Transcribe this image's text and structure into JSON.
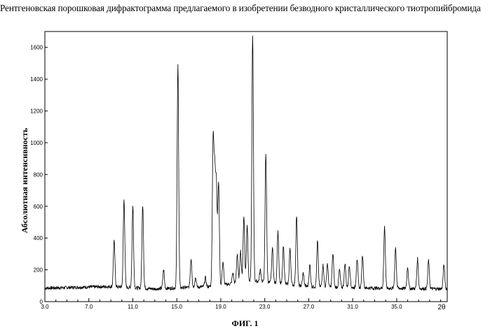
{
  "figure": {
    "title": "Рентгеновская порошковая дифрактограмма предлагаемого в изобретении безводного кристаллического тиотропийбромида",
    "caption": "ФИГ. 1"
  },
  "chart_data": {
    "type": "line",
    "ylabel": "Абсолютная интенсивность",
    "xlabel": "2θ",
    "xlim": [
      3.0,
      39.6
    ],
    "ylim": [
      0,
      1700
    ],
    "x_ticks": [
      "3.0",
      "7.0",
      "11.0",
      "15.0",
      "19.0",
      "23.0",
      "27.0",
      "31.0",
      "35.0"
    ],
    "y_ticks": [
      "0",
      "200",
      "400",
      "600",
      "800",
      "1000",
      "1200",
      "1400",
      "1600"
    ],
    "x_tick_values": [
      3,
      7,
      11,
      15,
      19,
      23,
      27,
      31,
      35
    ],
    "y_tick_values": [
      0,
      200,
      400,
      600,
      800,
      1000,
      1200,
      1400,
      1600
    ],
    "series": [
      {
        "line_color": "#000000",
        "baseline": [
          [
            3.0,
            85
          ],
          [
            9.0,
            95
          ],
          [
            13.0,
            80
          ],
          [
            18.0,
            95
          ],
          [
            22.0,
            130
          ],
          [
            27.0,
            95
          ],
          [
            33.0,
            85
          ],
          [
            39.6,
            80
          ]
        ],
        "peaks": [
          [
            9.3,
            380
          ],
          [
            10.2,
            640
          ],
          [
            11.0,
            600
          ],
          [
            11.9,
            610
          ],
          [
            13.8,
            200
          ],
          [
            15.1,
            1490
          ],
          [
            16.3,
            270
          ],
          [
            16.7,
            150
          ],
          [
            17.6,
            150
          ],
          [
            18.3,
            1000
          ],
          [
            18.45,
            760
          ],
          [
            18.6,
            720
          ],
          [
            18.8,
            740
          ],
          [
            19.2,
            250
          ],
          [
            20.1,
            180
          ],
          [
            20.5,
            300
          ],
          [
            20.8,
            320
          ],
          [
            21.1,
            540
          ],
          [
            21.4,
            480
          ],
          [
            21.9,
            1670
          ],
          [
            22.6,
            200
          ],
          [
            23.1,
            930
          ],
          [
            23.7,
            340
          ],
          [
            24.2,
            440
          ],
          [
            24.7,
            350
          ],
          [
            25.3,
            330
          ],
          [
            25.9,
            540
          ],
          [
            26.5,
            180
          ],
          [
            27.1,
            230
          ],
          [
            27.8,
            380
          ],
          [
            28.3,
            230
          ],
          [
            28.7,
            240
          ],
          [
            29.2,
            300
          ],
          [
            29.8,
            200
          ],
          [
            30.3,
            240
          ],
          [
            30.7,
            230
          ],
          [
            31.4,
            270
          ],
          [
            31.9,
            290
          ],
          [
            33.9,
            470
          ],
          [
            34.9,
            340
          ],
          [
            36.0,
            220
          ],
          [
            36.9,
            270
          ],
          [
            37.9,
            260
          ],
          [
            39.3,
            230
          ]
        ]
      }
    ]
  }
}
